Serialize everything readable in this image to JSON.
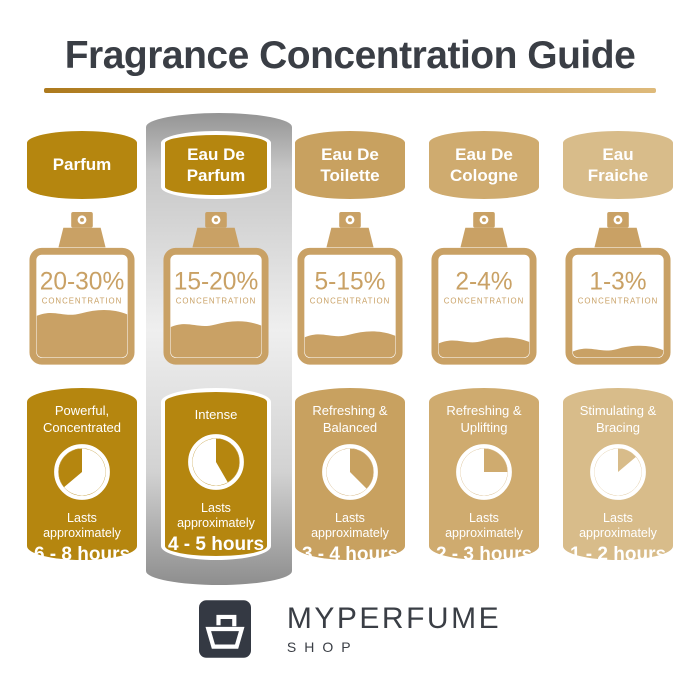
{
  "header": {
    "title": "Fragrance Concentration Guide"
  },
  "columns": [
    {
      "name": "Parfum",
      "concentration": "20-30%",
      "concentration_label": "CONCENTRATION",
      "liquid_level": 0.44,
      "description": "Powerful, Concentrated",
      "lasts_label": "Lasts approximately",
      "duration": "6 - 8 hours",
      "accent": "#b5860f",
      "highlighted": false,
      "clock": {
        "start": 230,
        "end": 360
      }
    },
    {
      "name": "Eau De Parfum",
      "concentration": "15-20%",
      "concentration_label": "CONCENTRATION",
      "liquid_level": 0.33,
      "description": "Intense",
      "lasts_label": "Lasts approximately",
      "duration": "4 - 5 hours",
      "accent": "#b5860f",
      "highlighted": true,
      "clock": {
        "start": 0,
        "end": 150
      }
    },
    {
      "name": "Eau De Toilette",
      "concentration": "5-15%",
      "concentration_label": "CONCENTRATION",
      "liquid_level": 0.23,
      "description": "Refreshing & Balanced",
      "lasts_label": "Lasts approximately",
      "duration": "3 - 4 hours",
      "accent": "#c8a160",
      "highlighted": false,
      "clock": {
        "start": 0,
        "end": 135
      }
    },
    {
      "name": "Eau De Cologne",
      "concentration": "2-4%",
      "concentration_label": "CONCENTRATION",
      "liquid_level": 0.17,
      "description": "Refreshing & Uplifting",
      "lasts_label": "Lasts approximately",
      "duration": "2 - 3 hours",
      "accent": "#cfab6f",
      "highlighted": false,
      "clock": {
        "start": 0,
        "end": 90
      }
    },
    {
      "name": "Eau Fraiche",
      "concentration": "1-3%",
      "concentration_label": "CONCENTRATION",
      "liquid_level": 0.09,
      "description": "Stimulating & Bracing",
      "lasts_label": "Lasts approximately",
      "duration": "1 - 2 hours",
      "accent": "#d8bc8a",
      "highlighted": false,
      "clock": {
        "start": 0,
        "end": 50
      }
    }
  ],
  "footer": {
    "brand": "MYPERFUME",
    "sub": "SHOP"
  },
  "colors": {
    "ink": "#3a3e45",
    "bottle": "#c9a165",
    "logo": "#343943",
    "white": "#ffffff",
    "u0": "#ad7a1d",
    "u2": "#deba7b",
    "silver_top": "#949494",
    "silver_mid": "#efefef",
    "silver_bottom": "#8e8e8e"
  }
}
